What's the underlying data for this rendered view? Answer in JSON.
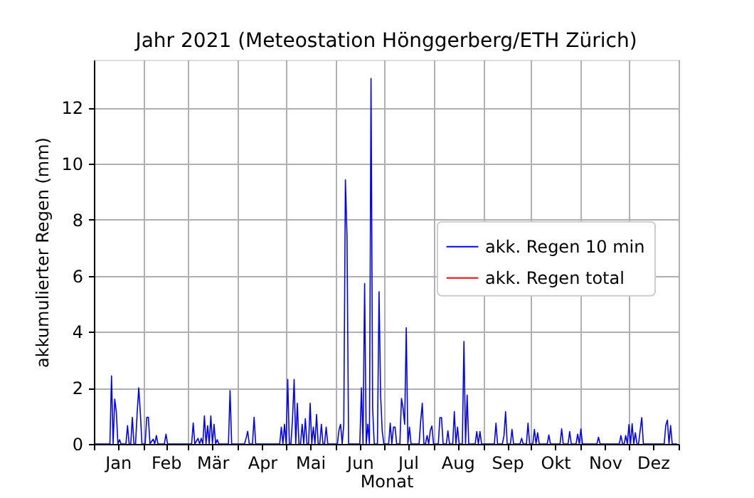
{
  "chart_data": {
    "type": "line",
    "title": "Jahr 2021   (Meteostation Hönggerberg/ETH Zürich)",
    "xlabel": "Monat",
    "ylabel": "akkumulierter Regen (mm)",
    "xlim": [
      "2021-01-01",
      "2022-01-01"
    ],
    "xticks": [
      {
        "value": "2021-01-01",
        "label": null
      },
      {
        "value": "2021-01-16",
        "label": "Jan"
      },
      {
        "value": "2021-02-01",
        "label": null
      },
      {
        "value": "2021-02-15",
        "label": "Feb"
      },
      {
        "value": "2021-03-01",
        "label": null
      },
      {
        "value": "2021-03-16",
        "label": "Mär"
      },
      {
        "value": "2021-04-01",
        "label": null
      },
      {
        "value": "2021-04-16",
        "label": "Apr"
      },
      {
        "value": "2021-05-01",
        "label": null
      },
      {
        "value": "2021-05-16",
        "label": "Mai"
      },
      {
        "value": "2021-06-01",
        "label": null
      },
      {
        "value": "2021-06-16",
        "label": "Jun"
      },
      {
        "value": "2021-07-01",
        "label": null
      },
      {
        "value": "2021-07-16",
        "label": "Jul"
      },
      {
        "value": "2021-08-01",
        "label": null
      },
      {
        "value": "2021-08-16",
        "label": "Aug"
      },
      {
        "value": "2021-09-01",
        "label": null
      },
      {
        "value": "2021-09-16",
        "label": "Sep"
      },
      {
        "value": "2021-10-01",
        "label": null
      },
      {
        "value": "2021-10-16",
        "label": "Okt"
      },
      {
        "value": "2021-11-01",
        "label": null
      },
      {
        "value": "2021-11-16",
        "label": "Nov"
      },
      {
        "value": "2021-12-01",
        "label": null
      },
      {
        "value": "2021-12-16",
        "label": "Dez"
      },
      {
        "value": "2022-01-01",
        "label": null
      }
    ],
    "ylim": [
      0,
      13.7
    ],
    "yticks": [
      0,
      2,
      4,
      6,
      8,
      10,
      12
    ],
    "grid": true,
    "legend": "right",
    "series": [
      {
        "name": "akk. Regen 10 min",
        "color": "#0000ff",
        "x": [
          "2021-01-01",
          "2021-01-11",
          "2021-01-12",
          "2021-01-13",
          "2021-01-14",
          "2021-01-15",
          "2021-01-16",
          "2021-01-17",
          "2021-01-18",
          "2021-01-21",
          "2021-01-22",
          "2021-01-23",
          "2021-01-24",
          "2021-01-25",
          "2021-01-26",
          "2021-01-27",
          "2021-01-28",
          "2021-01-29",
          "2021-01-30",
          "2021-01-31",
          "2021-02-02",
          "2021-02-03",
          "2021-02-04",
          "2021-02-05",
          "2021-02-07",
          "2021-02-08",
          "2021-02-09",
          "2021-02-10",
          "2021-02-14",
          "2021-02-15",
          "2021-02-16",
          "2021-03-03",
          "2021-03-04",
          "2021-03-05",
          "2021-03-07",
          "2021-03-08",
          "2021-03-09",
          "2021-03-10",
          "2021-03-11",
          "2021-03-12",
          "2021-03-13",
          "2021-03-14",
          "2021-03-15",
          "2021-03-16",
          "2021-03-17",
          "2021-03-18",
          "2021-03-19",
          "2021-03-20",
          "2021-03-26",
          "2021-03-27",
          "2021-03-28",
          "2021-04-05",
          "2021-04-06",
          "2021-04-07",
          "2021-04-08",
          "2021-04-10",
          "2021-04-11",
          "2021-04-12",
          "2021-04-27",
          "2021-04-28",
          "2021-04-29",
          "2021-04-30",
          "2021-05-01",
          "2021-05-02",
          "2021-05-03",
          "2021-05-04",
          "2021-05-05",
          "2021-05-06",
          "2021-05-07",
          "2021-05-08",
          "2021-05-09",
          "2021-05-10",
          "2021-05-11",
          "2021-05-12",
          "2021-05-13",
          "2021-05-14",
          "2021-05-15",
          "2021-05-16",
          "2021-05-17",
          "2021-05-18",
          "2021-05-19",
          "2021-05-20",
          "2021-05-21",
          "2021-05-22",
          "2021-05-23",
          "2021-05-24",
          "2021-05-25",
          "2021-05-26",
          "2021-05-27",
          "2021-06-02",
          "2021-06-03",
          "2021-06-04",
          "2021-06-05",
          "2021-06-06",
          "2021-06-07",
          "2021-06-08",
          "2021-06-09",
          "2021-06-16",
          "2021-06-17",
          "2021-06-18",
          "2021-06-19",
          "2021-06-20",
          "2021-06-21",
          "2021-06-22",
          "2021-06-23",
          "2021-06-24",
          "2021-06-25",
          "2021-06-27",
          "2021-06-28",
          "2021-06-29",
          "2021-06-30",
          "2021-07-01",
          "2021-07-04",
          "2021-07-05",
          "2021-07-06",
          "2021-07-07",
          "2021-07-08",
          "2021-07-09",
          "2021-07-11",
          "2021-07-12",
          "2021-07-13",
          "2021-07-14",
          "2021-07-15",
          "2021-07-16",
          "2021-07-17",
          "2021-07-18",
          "2021-07-23",
          "2021-07-24",
          "2021-07-25",
          "2021-07-26",
          "2021-07-27",
          "2021-07-28",
          "2021-07-29",
          "2021-07-30",
          "2021-07-31",
          "2021-08-01",
          "2021-08-04",
          "2021-08-05",
          "2021-08-06",
          "2021-08-07",
          "2021-08-09",
          "2021-08-10",
          "2021-08-11",
          "2021-08-13",
          "2021-08-14",
          "2021-08-15",
          "2021-08-16",
          "2021-08-17",
          "2021-08-19",
          "2021-08-20",
          "2021-08-21",
          "2021-08-22",
          "2021-08-23",
          "2021-08-27",
          "2021-08-28",
          "2021-08-29",
          "2021-08-30",
          "2021-08-31",
          "2021-09-08",
          "2021-09-09",
          "2021-09-10",
          "2021-09-13",
          "2021-09-14",
          "2021-09-15",
          "2021-09-16",
          "2021-09-18",
          "2021-09-19",
          "2021-09-20",
          "2021-09-24",
          "2021-09-25",
          "2021-09-26",
          "2021-09-28",
          "2021-09-29",
          "2021-09-30",
          "2021-10-02",
          "2021-10-03",
          "2021-10-04",
          "2021-10-05",
          "2021-10-06",
          "2021-10-11",
          "2021-10-12",
          "2021-10-13",
          "2021-10-19",
          "2021-10-20",
          "2021-10-21",
          "2021-10-24",
          "2021-10-25",
          "2021-10-26",
          "2021-10-29",
          "2021-10-30",
          "2021-10-31",
          "2021-11-01",
          "2021-11-02",
          "2021-11-11",
          "2021-11-12",
          "2021-11-13",
          "2021-11-25",
          "2021-11-26",
          "2021-11-27",
          "2021-11-28",
          "2021-11-29",
          "2021-11-30",
          "2021-12-01",
          "2021-12-02",
          "2021-12-03",
          "2021-12-04",
          "2021-12-05",
          "2021-12-06",
          "2021-12-07",
          "2021-12-08",
          "2021-12-09",
          "2021-12-10",
          "2021-12-23",
          "2021-12-24",
          "2021-12-25",
          "2021-12-26",
          "2021-12-27",
          "2021-12-28",
          "2021-12-31"
        ],
        "values": [
          0,
          0,
          2.43,
          0,
          1.6,
          1.15,
          0,
          0.15,
          0,
          0,
          0.65,
          0,
          0,
          0.95,
          0,
          0,
          1.1,
          2.0,
          1.1,
          0,
          0,
          0.95,
          0.95,
          0,
          0.17,
          0,
          0.3,
          0,
          0,
          0.35,
          0,
          0,
          0.75,
          0,
          0.2,
          0,
          0.2,
          0,
          1.0,
          0,
          0.65,
          0,
          1.0,
          0,
          0.7,
          0,
          0.15,
          0,
          0,
          1.9,
          0,
          0,
          0.2,
          0.45,
          0,
          0,
          0.95,
          0,
          0,
          0.6,
          0,
          0.7,
          0,
          2.3,
          0,
          0,
          0.9,
          2.3,
          0,
          1.45,
          0,
          0,
          0.7,
          0,
          0.9,
          0,
          0,
          1.45,
          0,
          0.6,
          0,
          1.05,
          0,
          0,
          0.7,
          0,
          0,
          0.6,
          0,
          0,
          0.5,
          0.7,
          0,
          0.7,
          9.42,
          7.43,
          0,
          0,
          2.0,
          0,
          5.72,
          0,
          0.7,
          0,
          13.03,
          1.27,
          0,
          0,
          5.43,
          1.7,
          0.45,
          0,
          0,
          0.74,
          0,
          0.6,
          0.6,
          0,
          0,
          1.62,
          1.28,
          0.7,
          4.14,
          0,
          0.6,
          0,
          0,
          0.82,
          1.45,
          0,
          0,
          0.3,
          0,
          0.48,
          0.64,
          0,
          0,
          0.94,
          0.94,
          0,
          0,
          0.47,
          0,
          0,
          1.15,
          0,
          0.6,
          0,
          0,
          3.65,
          0,
          1.74,
          0,
          0,
          0.44,
          0,
          0.44,
          0,
          0,
          0.74,
          0,
          0,
          0.3,
          1.15,
          0,
          0,
          0.52,
          0,
          0,
          0.2,
          0,
          0,
          0.74,
          0,
          0,
          0.52,
          0,
          0.4,
          0,
          0,
          0.32,
          0,
          0,
          0.54,
          0,
          0,
          0.44,
          0,
          0,
          0.35,
          0,
          0.54,
          0,
          0,
          0.24,
          0,
          0,
          0.3,
          0,
          0,
          0.3,
          0,
          0.69,
          0,
          0.72,
          0,
          0.4,
          0,
          0,
          0.48,
          0.94,
          0,
          0,
          0.66,
          0.85,
          0,
          0.66,
          0,
          0
        ]
      },
      {
        "name": "akk. Regen total",
        "color": "#ff0000"
      }
    ]
  }
}
